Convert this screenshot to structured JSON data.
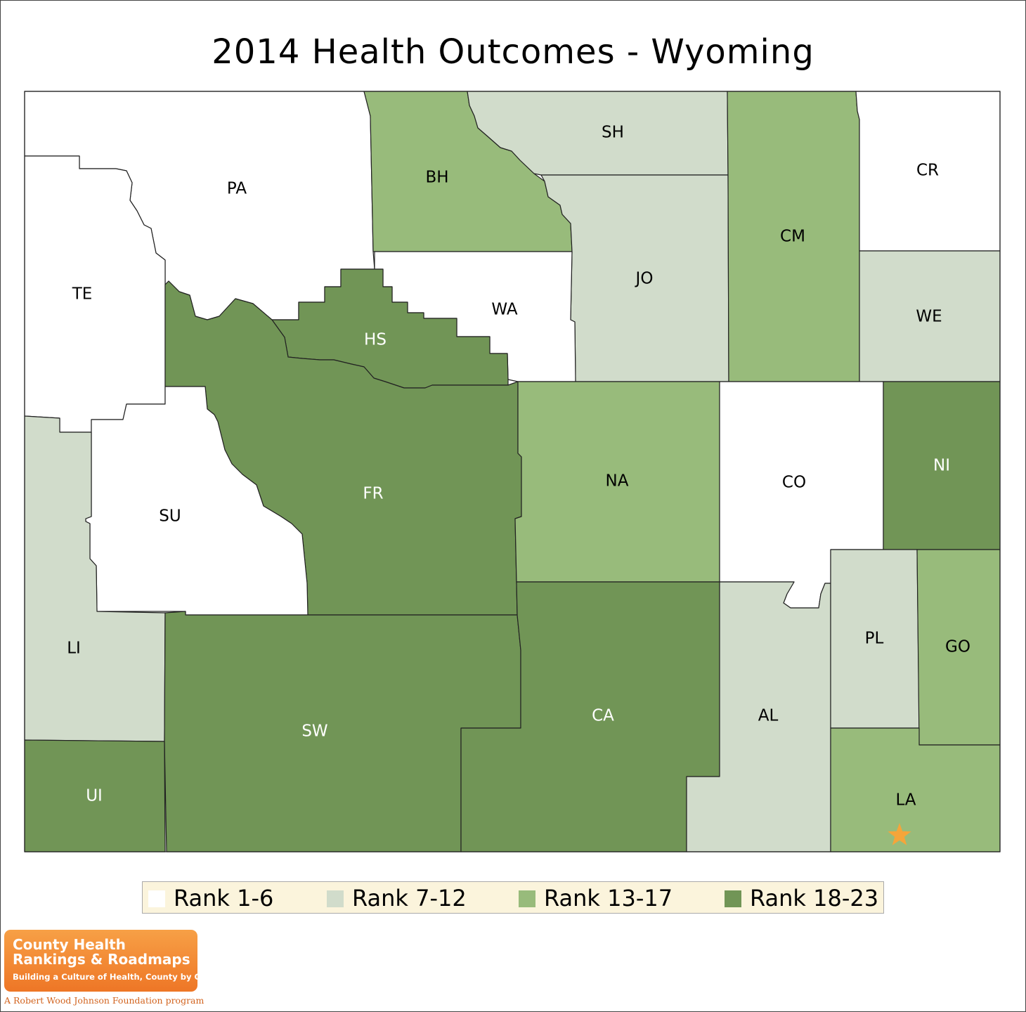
{
  "title": "2014 Health Outcomes - Wyoming",
  "colors": {
    "rank_1_6": "#ffffff",
    "rank_7_12": "#d1dccb",
    "rank_13_17": "#98bb7b",
    "rank_18_23": "#719556",
    "star": "#f5a53a"
  },
  "legend": [
    {
      "label": "Rank 1-6",
      "color": "#ffffff"
    },
    {
      "label": "Rank 7-12",
      "color": "#d1dccb"
    },
    {
      "label": "Rank 13-17",
      "color": "#98bb7b"
    },
    {
      "label": "Rank 18-23",
      "color": "#719556"
    }
  ],
  "counties": [
    {
      "abbr": "PA",
      "rank_group": "1-6"
    },
    {
      "abbr": "TE",
      "rank_group": "1-6"
    },
    {
      "abbr": "BH",
      "rank_group": "13-17"
    },
    {
      "abbr": "SH",
      "rank_group": "7-12"
    },
    {
      "abbr": "CM",
      "rank_group": "13-17"
    },
    {
      "abbr": "CR",
      "rank_group": "1-6"
    },
    {
      "abbr": "JO",
      "rank_group": "7-12"
    },
    {
      "abbr": "WA",
      "rank_group": "1-6"
    },
    {
      "abbr": "HS",
      "rank_group": "18-23"
    },
    {
      "abbr": "WE",
      "rank_group": "7-12"
    },
    {
      "abbr": "FR",
      "rank_group": "18-23"
    },
    {
      "abbr": "SU",
      "rank_group": "1-6"
    },
    {
      "abbr": "NA",
      "rank_group": "13-17"
    },
    {
      "abbr": "CO",
      "rank_group": "1-6"
    },
    {
      "abbr": "NI",
      "rank_group": "18-23"
    },
    {
      "abbr": "LI",
      "rank_group": "7-12"
    },
    {
      "abbr": "SW",
      "rank_group": "18-23"
    },
    {
      "abbr": "CA",
      "rank_group": "18-23"
    },
    {
      "abbr": "AL",
      "rank_group": "7-12"
    },
    {
      "abbr": "PL",
      "rank_group": "7-12"
    },
    {
      "abbr": "GO",
      "rank_group": "13-17"
    },
    {
      "abbr": "UI",
      "rank_group": "18-23"
    },
    {
      "abbr": "LA",
      "rank_group": "13-17"
    }
  ],
  "marker": {
    "type": "star-icon",
    "county": "LA"
  },
  "badge": {
    "line1": "County Health",
    "line2": "Rankings & Roadmaps",
    "tagline": "Building a Culture of Health, County by County",
    "footer": "A Robert Wood Johnson Foundation program"
  }
}
